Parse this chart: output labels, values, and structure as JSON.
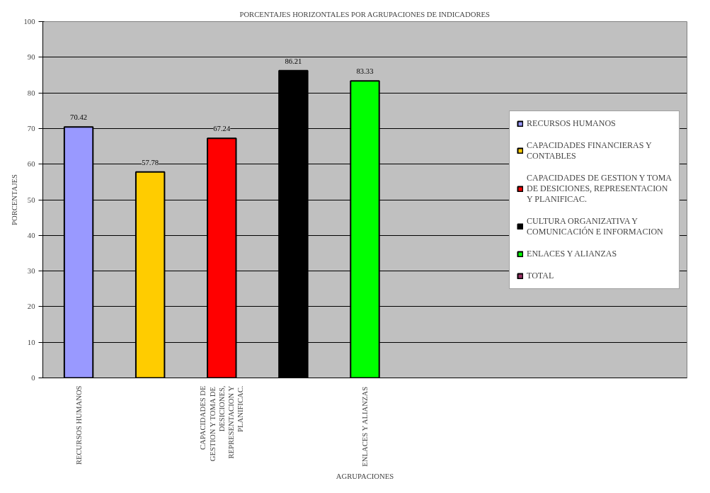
{
  "chart_data": {
    "type": "bar",
    "title": "PORCENTAJES HORIZONTALES POR AGRUPACIONES DE INDICADORES",
    "xlabel": "AGRUPACIONES",
    "ylabel": "PORCENTAJES",
    "categories": [
      "RECURSOS HUMANOS",
      null,
      "CAPACIDADES DE GESTION Y TOMA DE DESICIONES, REPRESENTACION Y PLANIFICAC.",
      null,
      "ENLACES Y ALIANZAS",
      null
    ],
    "series": [
      {
        "name": "RECURSOS HUMANOS",
        "color": "#9999ff",
        "values": [
          70.42,
          null,
          null,
          null,
          null,
          null
        ]
      },
      {
        "name": "CAPACIDADES FINANCIERAS Y CONTABLES",
        "color": "#ffcc00",
        "values": [
          null,
          57.78,
          null,
          null,
          null,
          null
        ]
      },
      {
        "name": "CAPACIDADES DE GESTION Y TOMA DE DESICIONES, REPRESENTACION Y PLANIFICAC.",
        "color": "#ff0000",
        "values": [
          null,
          null,
          67.24,
          null,
          null,
          null
        ]
      },
      {
        "name": "CULTURA ORGANIZATIVA Y COMUNICACIÓN E INFORMACION",
        "color": "#000000",
        "values": [
          null,
          null,
          null,
          86.21,
          null,
          null
        ]
      },
      {
        "name": "ENLACES Y ALIANZAS",
        "color": "#00ff00",
        "values": [
          null,
          null,
          null,
          null,
          83.33,
          null
        ]
      },
      {
        "name": "TOTAL",
        "color": "#993366",
        "values": [
          null,
          null,
          null,
          null,
          null,
          null
        ]
      }
    ],
    "ylim": [
      0,
      100
    ],
    "yticks": [
      0,
      10,
      20,
      30,
      40,
      50,
      60,
      70,
      80,
      90,
      100
    ],
    "grid": "y",
    "legend": "right",
    "data_labels": true
  }
}
